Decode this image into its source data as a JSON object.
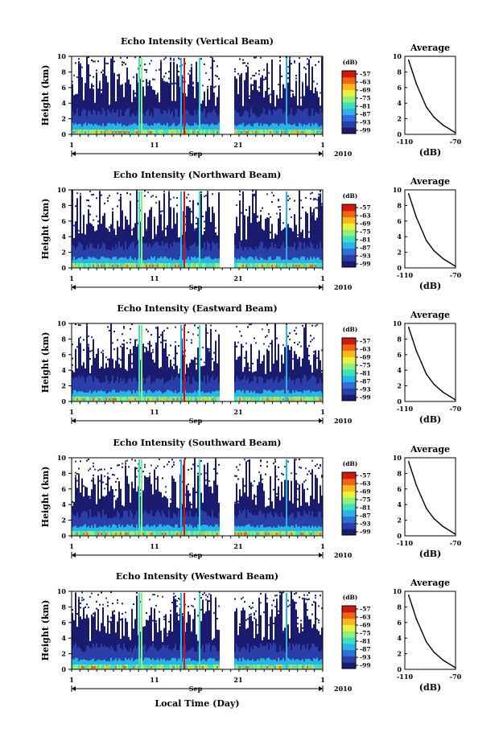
{
  "figure": {
    "xlabel_bottom": "Local Time (Day)",
    "colorbar_unit": "(dB)",
    "colorbar_ticks": [
      "-57",
      "-63",
      "-69",
      "-75",
      "-81",
      "-87",
      "-93",
      "-99"
    ],
    "colormap": [
      "#1a1a6e",
      "#2b3fa8",
      "#2f6fd6",
      "#28b4e6",
      "#3ee0c0",
      "#8ff07a",
      "#e8f23c",
      "#f8b81e",
      "#f06414",
      "#d01810"
    ],
    "average_title": "Average",
    "average_xlabel": "(dB)",
    "average_xticks": [
      "-110",
      "-70"
    ],
    "average_yticks": [
      "0",
      "2",
      "4",
      "6",
      "8",
      "10"
    ],
    "height_label": "Height (km)",
    "height_ticks": [
      "0",
      "2",
      "4",
      "6",
      "8",
      "10"
    ],
    "day_ticks": [
      "1",
      "11",
      "21",
      "1"
    ],
    "month_label": "Sep",
    "year_label": "2010"
  },
  "chart_data": [
    {
      "type": "heatmap",
      "title": "Echo Intensity (Vertical Beam)",
      "xlabel": "",
      "ylabel": "Height (km)",
      "ylim": [
        0,
        10
      ],
      "colorbar": {
        "label": "(dB)",
        "range": [
          -99,
          -57
        ]
      },
      "average_profile": {
        "title": "Average",
        "xlabel": "(dB)",
        "xlim": [
          -110,
          -70
        ],
        "ylim": [
          0,
          10
        ],
        "x": [
          -107,
          -104,
          -101,
          -97,
          -93,
          -87,
          -80,
          -74,
          -70
        ],
        "y": [
          9.5,
          8,
          6.5,
          5,
          3.5,
          2.2,
          1.2,
          0.6,
          0.2
        ]
      }
    },
    {
      "type": "heatmap",
      "title": "Echo Intensity (Northward Beam)",
      "xlabel": "",
      "ylabel": "Height (km)",
      "ylim": [
        0,
        10
      ],
      "colorbar": {
        "label": "(dB)",
        "range": [
          -99,
          -57
        ]
      },
      "average_profile": {
        "title": "Average",
        "xlabel": "(dB)",
        "xlim": [
          -110,
          -70
        ],
        "ylim": [
          0,
          10
        ],
        "x": [
          -107,
          -104,
          -101,
          -97,
          -93,
          -87,
          -80,
          -74,
          -70
        ],
        "y": [
          9.5,
          8,
          6.5,
          5,
          3.5,
          2.2,
          1.2,
          0.6,
          0.2
        ]
      }
    },
    {
      "type": "heatmap",
      "title": "Echo Intensity (Eastward Beam)",
      "xlabel": "",
      "ylabel": "Height (km)",
      "ylim": [
        0,
        10
      ],
      "colorbar": {
        "label": "(dB)",
        "range": [
          -99,
          -57
        ]
      },
      "average_profile": {
        "title": "Average",
        "xlabel": "(dB)",
        "xlim": [
          -110,
          -70
        ],
        "ylim": [
          0,
          10
        ],
        "x": [
          -107,
          -104,
          -101,
          -97,
          -93,
          -87,
          -80,
          -74,
          -70
        ],
        "y": [
          9.5,
          8,
          6.5,
          5,
          3.5,
          2.2,
          1.2,
          0.6,
          0.2
        ]
      }
    },
    {
      "type": "heatmap",
      "title": "Echo Intensity (Southward Beam)",
      "xlabel": "",
      "ylabel": "Height (km)",
      "ylim": [
        0,
        10
      ],
      "colorbar": {
        "label": "(dB)",
        "range": [
          -99,
          -57
        ]
      },
      "average_profile": {
        "title": "Average",
        "xlabel": "(dB)",
        "xlim": [
          -110,
          -70
        ],
        "ylim": [
          0,
          10
        ],
        "x": [
          -107,
          -104,
          -101,
          -97,
          -93,
          -87,
          -80,
          -74,
          -70
        ],
        "y": [
          9.5,
          8,
          6.5,
          5,
          3.5,
          2.2,
          1.2,
          0.6,
          0.2
        ]
      }
    },
    {
      "type": "heatmap",
      "title": "Echo Intensity (Westward Beam)",
      "xlabel": "Local Time (Day)",
      "ylabel": "Height (km)",
      "ylim": [
        0,
        10
      ],
      "colorbar": {
        "label": "(dB)",
        "range": [
          -99,
          -57
        ]
      },
      "average_profile": {
        "title": "Average",
        "xlabel": "(dB)",
        "xlim": [
          -110,
          -70
        ],
        "ylim": [
          0,
          10
        ],
        "x": [
          -107,
          -104,
          -101,
          -97,
          -93,
          -87,
          -80,
          -74,
          -70
        ],
        "y": [
          9.5,
          8,
          6.5,
          5,
          3.5,
          2.2,
          1.2,
          0.6,
          0.2
        ]
      }
    }
  ]
}
